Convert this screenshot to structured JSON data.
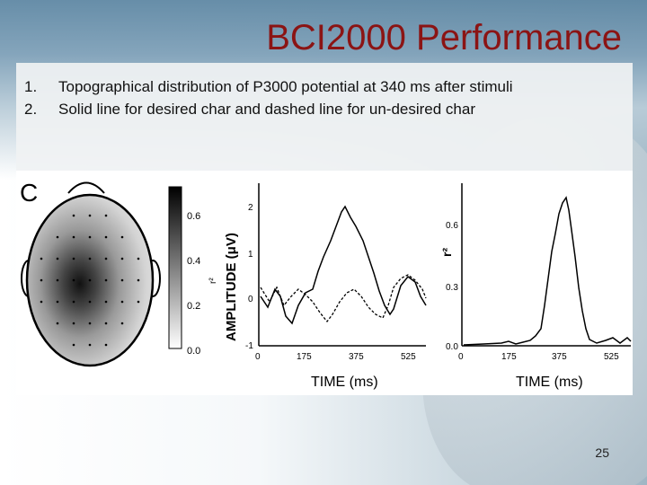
{
  "slide": {
    "title": "BCI2000 Performance",
    "bullets": [
      {
        "num": "1.",
        "text": "Topographical distribution of P3000 potential at 340 ms after stimuli"
      },
      {
        "num": "2.",
        "text": "Solid line for desired char and dashed line for un-desired char"
      }
    ],
    "page_number": "25"
  },
  "figure": {
    "panel_label": "C",
    "topo": {
      "colorbar_ticks": [
        "0.6",
        "0.4",
        "0.2",
        "0.0"
      ],
      "colorbar_unit": "r²"
    },
    "amplitude_plot": {
      "ylabel": "AMPLITUDE (μV)",
      "xlabel": "TIME (ms)",
      "yticks": [
        "2",
        "1",
        "0",
        "-1"
      ],
      "xticks": [
        "0",
        "175",
        "375",
        "525"
      ]
    },
    "r2_plot": {
      "ylabel": "r²",
      "xlabel": "TIME (ms)",
      "yticks": [
        "0.6",
        "0.3",
        "0.0"
      ],
      "xticks": [
        "0",
        "175",
        "375",
        "525"
      ]
    }
  }
}
